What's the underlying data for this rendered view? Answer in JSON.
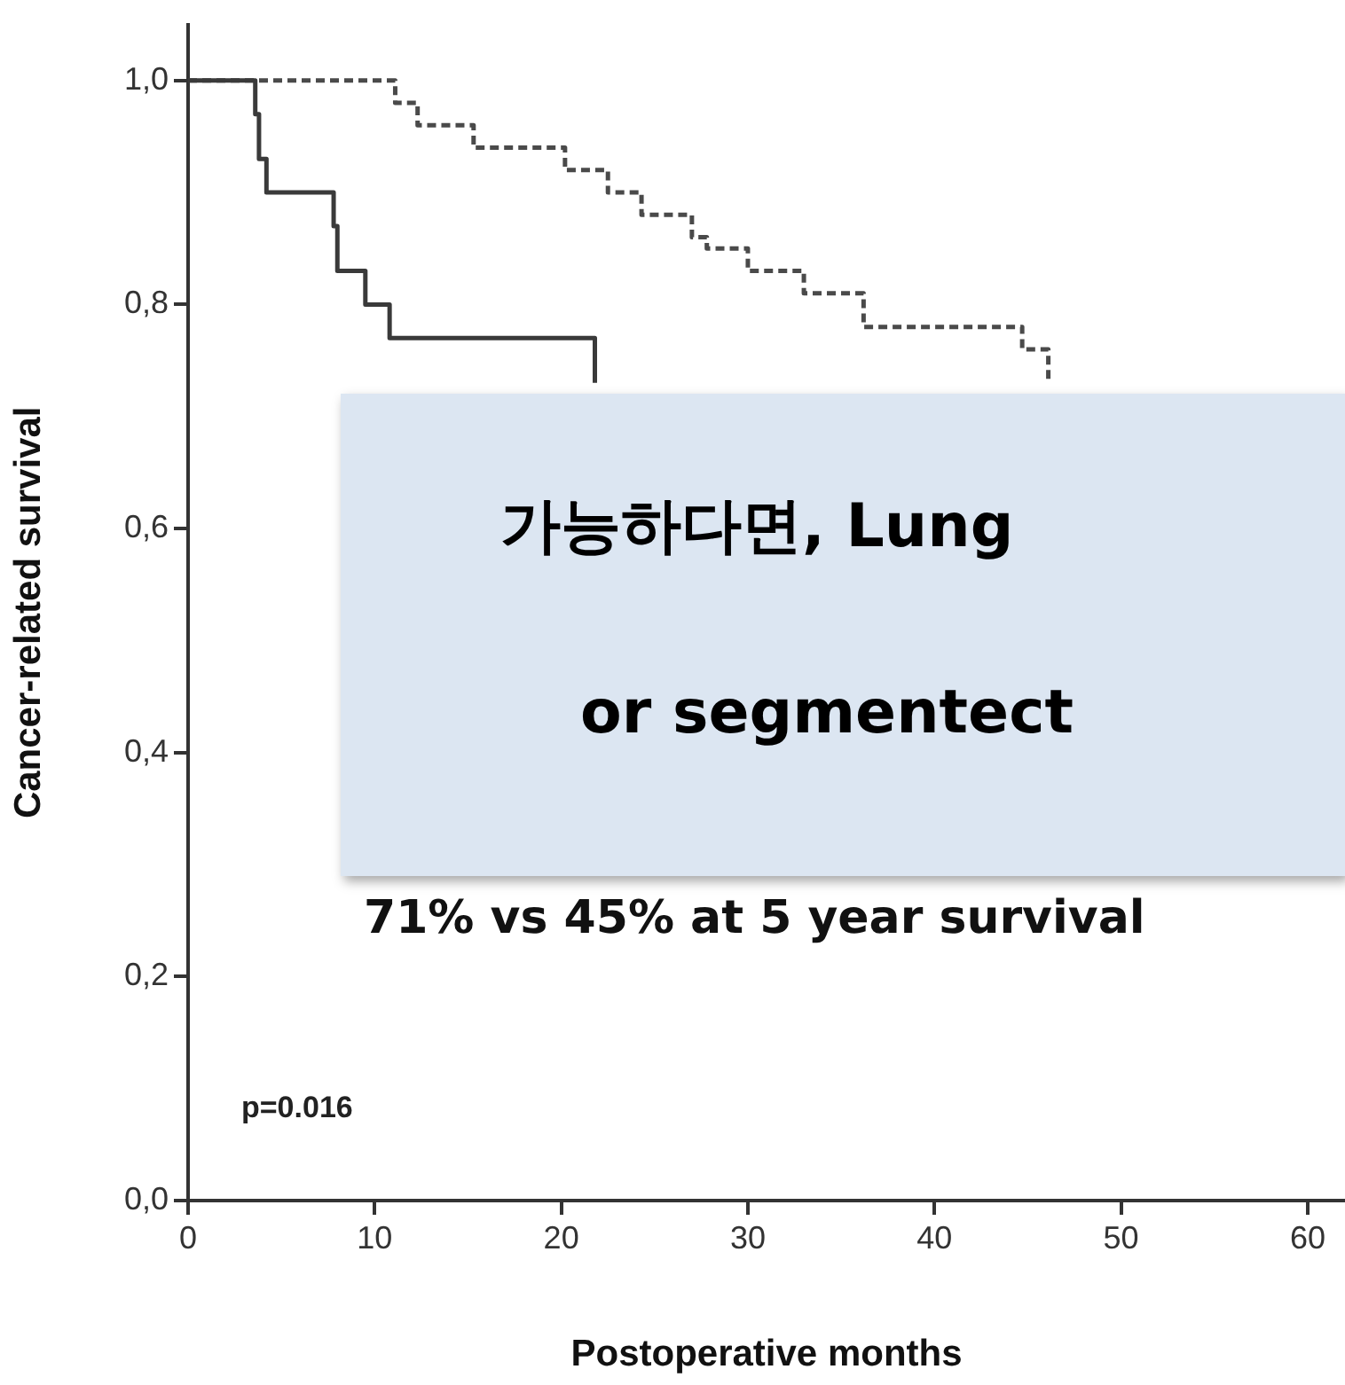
{
  "chart_data": {
    "type": "step",
    "xlabel": "Postoperative months",
    "ylabel": "Cancer-related survival",
    "xlim": [
      0,
      62
    ],
    "xticks": [
      0,
      10,
      20,
      30,
      40,
      50,
      60
    ],
    "ylim": [
      0,
      1.05
    ],
    "yticks": [
      {
        "value": 0,
        "label": "0,0"
      },
      {
        "value": 0.2,
        "label": "0,2"
      },
      {
        "value": 0.4,
        "label": "0,4"
      },
      {
        "value": 0.6,
        "label": "0,6"
      },
      {
        "value": 0.8,
        "label": "0,8"
      },
      {
        "value": 1,
        "label": "1,0"
      }
    ],
    "grid": false,
    "legend": false,
    "series": [
      {
        "color": "#3a3a3a",
        "line_style": "solid",
        "x": [
          0,
          3.6,
          3.8,
          4.2,
          4.8,
          7.8,
          8.0,
          9.5,
          10.8,
          21.8
        ],
        "values": [
          1,
          0.97,
          0.93,
          0.9,
          0.9,
          0.87,
          0.83,
          0.8,
          0.77,
          0.73
        ]
      },
      {
        "color": "#4a4a4a",
        "line_style": "dashed",
        "x": [
          0,
          11.1,
          12.3,
          15.3,
          20.2,
          22.5,
          24.3,
          27.0,
          27.8,
          30.0,
          33.0,
          36.2,
          44.7,
          46.1
        ],
        "values": [
          1,
          0.98,
          0.96,
          0.94,
          0.92,
          0.9,
          0.88,
          0.86,
          0.85,
          0.83,
          0.81,
          0.78,
          0.76,
          0.73
        ]
      }
    ],
    "annotations": [
      "p=0.016",
      "가능하다면, Lung",
      "or segmentect",
      "71% vs 45% at 5 year survival"
    ]
  }
}
